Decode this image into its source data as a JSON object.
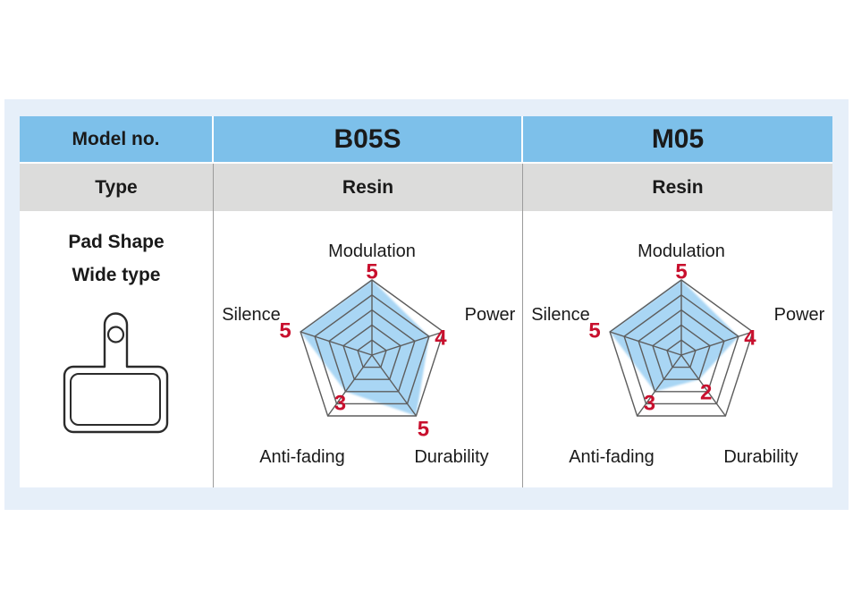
{
  "colors": {
    "page_bg": "#ffffff",
    "panel_bg": "#e6eff9",
    "header_blue": "#7dc0ea",
    "row_gray": "#dcdcdb",
    "cell_white": "#ffffff",
    "separator_white": "#ffffff",
    "separator_gray": "#9b9b9b",
    "text": "#1a1a1a",
    "radar_fill": "#a9d6f4",
    "radar_grid": "#5d5d5d",
    "value_red": "#c8102e",
    "pad_outline": "#2b2b2b"
  },
  "table": {
    "header": {
      "model_no": "Model no.",
      "model_1": "B05S",
      "model_2": "M05"
    },
    "type_row": {
      "label": "Type",
      "type_1": "Resin",
      "type_2": "Resin"
    },
    "pad_cell": {
      "line1": "Pad Shape",
      "line2": "Wide type",
      "icon": "brake-pad-wide-shape-icon"
    }
  },
  "chart_data": [
    {
      "type": "radar",
      "model": "B05S",
      "axes": [
        "Modulation",
        "Power",
        "Durability",
        "Anti-fading",
        "Silence"
      ],
      "values": [
        5,
        4,
        5,
        3,
        5
      ],
      "scale_min": 0,
      "scale_max": 5,
      "rings": 5,
      "grid": true,
      "legend": "none",
      "value_label_color": "#c8102e"
    },
    {
      "type": "radar",
      "model": "M05",
      "axes": [
        "Modulation",
        "Power",
        "Durability",
        "Anti-fading",
        "Silence"
      ],
      "values": [
        5,
        4,
        2,
        3,
        5
      ],
      "scale_min": 0,
      "scale_max": 5,
      "rings": 5,
      "grid": true,
      "legend": "none",
      "value_label_color": "#c8102e"
    }
  ]
}
